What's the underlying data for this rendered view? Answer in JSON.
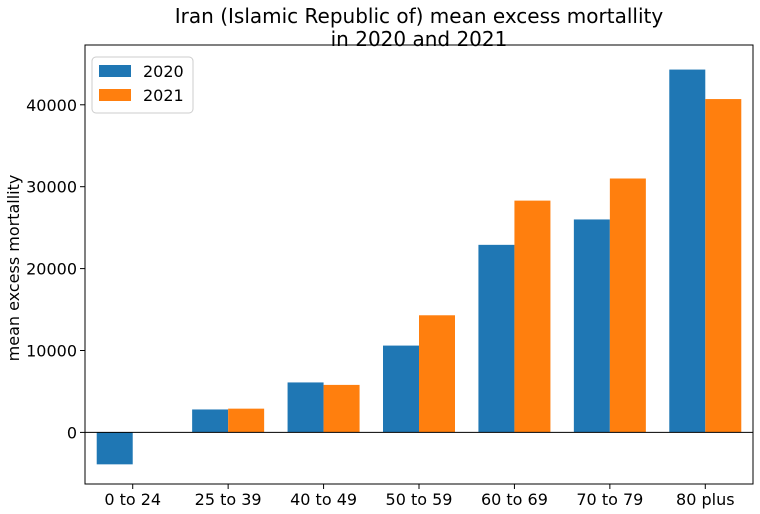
{
  "chart_data": {
    "type": "bar",
    "title_lines": [
      "Iran (Islamic Republic of) mean excess mortallity",
      "in 2020 and 2021"
    ],
    "xlabel": "",
    "ylabel": "mean excess mortallity",
    "categories": [
      "0 to 24",
      "25 to 39",
      "40 to 49",
      "50 to 59",
      "60 to 69",
      "70 to 79",
      "80 plus"
    ],
    "series": [
      {
        "name": "2020",
        "color": "#1f77b4",
        "values": [
          -3900,
          2800,
          6100,
          10600,
          22900,
          26000,
          44300
        ]
      },
      {
        "name": "2021",
        "color": "#ff7f0e",
        "values": [
          null,
          2900,
          5800,
          14300,
          28300,
          31000,
          40700
        ]
      }
    ],
    "ylim": [
      -6300,
      47300
    ],
    "yticks": [
      0,
      10000,
      20000,
      30000,
      40000
    ],
    "ytick_labels": [
      "0",
      "10000",
      "20000",
      "30000",
      "40000"
    ],
    "zero_line": true,
    "grid": false,
    "legend_position": "top-left"
  }
}
